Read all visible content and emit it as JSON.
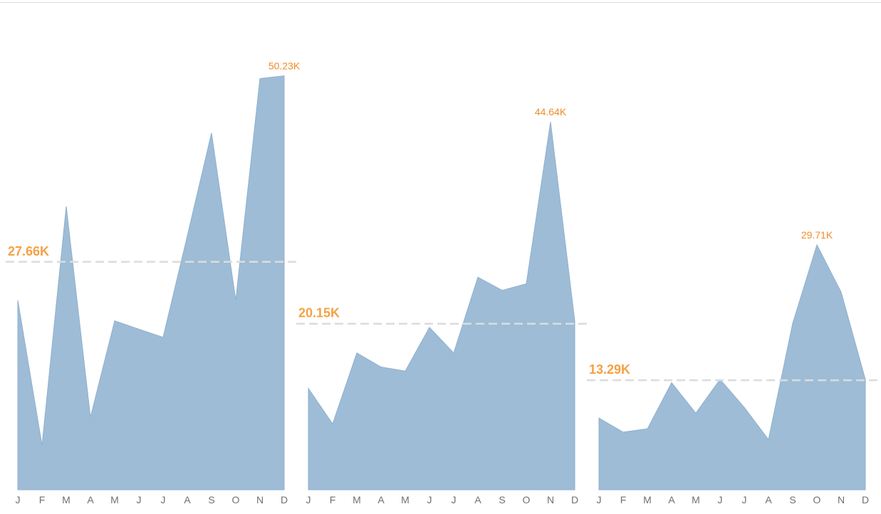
{
  "chart_data": [
    {
      "type": "area",
      "categories": [
        "J",
        "F",
        "M",
        "A",
        "M",
        "J",
        "J",
        "A",
        "S",
        "O",
        "N",
        "D"
      ],
      "values": [
        23000,
        5400,
        34400,
        8800,
        20500,
        19500,
        18500,
        30800,
        43300,
        23000,
        49900,
        50230
      ],
      "reference_line": {
        "value": 27660,
        "label": "27.66K"
      },
      "max_label": "50.23K",
      "color": "#9ebcd6",
      "ylim": [
        0,
        52000
      ]
    },
    {
      "type": "area",
      "categories": [
        "J",
        "F",
        "M",
        "A",
        "M",
        "J",
        "J",
        "A",
        "S",
        "O",
        "N",
        "D"
      ],
      "values": [
        12300,
        8000,
        16600,
        14900,
        14400,
        19700,
        16600,
        25800,
        24200,
        25000,
        44640,
        20500
      ],
      "reference_line": {
        "value": 20150,
        "label": "20.15K"
      },
      "max_label": "44.64K",
      "color": "#9ebcd6",
      "ylim": [
        0,
        52000
      ]
    },
    {
      "type": "area",
      "categories": [
        "J",
        "F",
        "M",
        "A",
        "M",
        "J",
        "J",
        "A",
        "S",
        "O",
        "N",
        "D"
      ],
      "values": [
        8700,
        7000,
        7400,
        13000,
        9300,
        13400,
        10000,
        6100,
        20200,
        29710,
        24000,
        13400
      ],
      "reference_line": {
        "value": 13290,
        "label": "13.29K"
      },
      "max_label": "29.71K",
      "color": "#9ebcd6",
      "ylim": [
        0,
        52000
      ]
    }
  ]
}
